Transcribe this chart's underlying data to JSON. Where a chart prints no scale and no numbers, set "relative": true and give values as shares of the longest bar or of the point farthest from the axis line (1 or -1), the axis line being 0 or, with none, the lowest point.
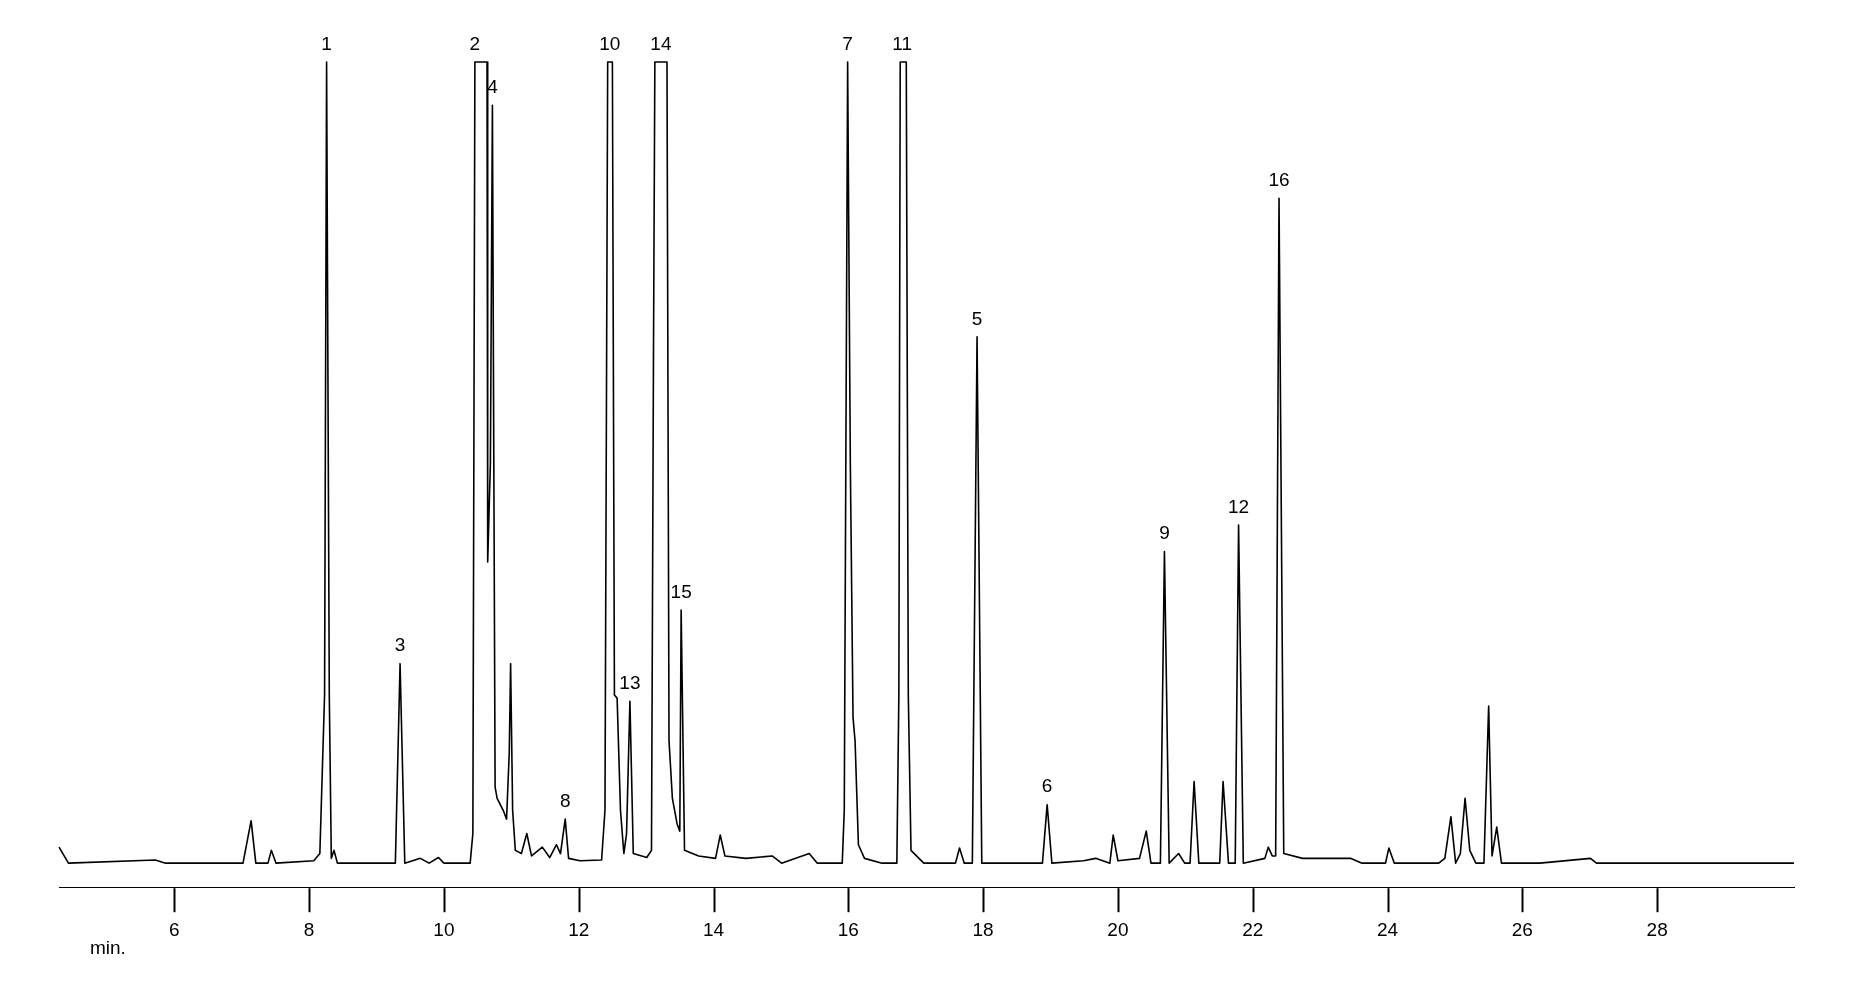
{
  "chart_data": {
    "type": "line",
    "relative": true,
    "color": "#000000",
    "tick_labels": "x",
    "xlabel": "min.",
    "xlim": [
      4.29,
      30.03
    ],
    "xticks": [
      6,
      8,
      10,
      12,
      14,
      16,
      18,
      20,
      22,
      24,
      26,
      28
    ],
    "x": [
      4.29,
      4.43,
      5.72,
      5.87,
      7.02,
      7.14,
      7.21,
      7.39,
      7.44,
      7.51,
      8.07,
      8.16,
      8.23,
      8.26,
      8.3,
      8.33,
      8.37,
      8.42,
      9.28,
      9.35,
      9.42,
      9.65,
      9.78,
      9.92,
      10.0,
      10.39,
      10.43,
      10.46,
      10.64,
      10.65,
      10.69,
      10.72,
      10.76,
      10.79,
      10.88,
      10.93,
      10.97,
      10.99,
      11.02,
      11.06,
      11.15,
      11.23,
      11.3,
      11.46,
      11.57,
      11.67,
      11.73,
      11.8,
      11.85,
      12.02,
      12.34,
      12.39,
      12.43,
      12.5,
      12.53,
      12.57,
      12.62,
      12.67,
      12.71,
      12.76,
      12.81,
      13.01,
      13.08,
      13.11,
      13.13,
      13.31,
      13.34,
      13.39,
      13.46,
      13.5,
      13.52,
      13.57,
      13.78,
      14.03,
      14.1,
      14.17,
      14.48,
      14.87,
      15.01,
      15.42,
      15.54,
      15.91,
      15.94,
      15.99,
      16.03,
      16.07,
      16.1,
      16.15,
      16.24,
      16.5,
      16.72,
      16.75,
      16.77,
      16.86,
      16.89,
      16.93,
      17.12,
      17.59,
      17.65,
      17.72,
      17.84,
      17.91,
      17.98,
      18.35,
      18.88,
      18.95,
      19.02,
      19.49,
      19.67,
      19.88,
      19.93,
      20.0,
      20.32,
      20.42,
      20.49,
      20.63,
      20.69,
      20.76,
      20.9,
      20.99,
      21.07,
      21.13,
      21.2,
      21.51,
      21.56,
      21.64,
      21.74,
      21.79,
      21.86,
      22.18,
      22.23,
      22.29,
      22.34,
      22.39,
      22.46,
      22.74,
      23.45,
      23.62,
      23.97,
      24.02,
      24.1,
      24.76,
      24.85,
      24.94,
      25.01,
      25.08,
      25.15,
      25.22,
      25.31,
      25.43,
      25.5,
      25.55,
      25.62,
      25.69,
      26.26,
      27.01,
      27.1,
      30.03
    ],
    "values": [
      0.02,
      0,
      0.004,
      0,
      0,
      0.053,
      0,
      0,
      0.016,
      0,
      0.003,
      0.012,
      0.21,
      1.0,
      0.21,
      0.006,
      0.016,
      0,
      0,
      0.249,
      0,
      0.006,
      0,
      0.007,
      0,
      0,
      0.037,
      1.0,
      1.0,
      0.376,
      0.499,
      0.946,
      0.095,
      0.081,
      0.066,
      0.055,
      0.138,
      0.249,
      0.066,
      0.016,
      0.012,
      0.037,
      0.009,
      0.02,
      0.007,
      0.023,
      0.012,
      0.055,
      0.006,
      0.003,
      0.004,
      0.066,
      1.0,
      1.0,
      0.21,
      0.206,
      0.066,
      0.012,
      0.037,
      0.202,
      0.012,
      0.007,
      0.016,
      0.643,
      1.0,
      1.0,
      0.153,
      0.081,
      0.049,
      0.04,
      0.316,
      0.016,
      0.009,
      0.006,
      0.035,
      0.009,
      0.006,
      0.009,
      0,
      0.012,
      0,
      0,
      0.066,
      1.0,
      0.499,
      0.182,
      0.153,
      0.023,
      0.006,
      0,
      0,
      0.21,
      1.0,
      1.0,
      0.21,
      0.016,
      0,
      0,
      0.019,
      0,
      0,
      0.657,
      0,
      0,
      0,
      0.073,
      0,
      0.003,
      0.006,
      0,
      0.035,
      0.003,
      0.006,
      0.04,
      0,
      0,
      0.389,
      0,
      0.012,
      0,
      0,
      0.102,
      0,
      0,
      0.102,
      0,
      0,
      0.422,
      0,
      0.006,
      0.02,
      0.009,
      0.009,
      0.83,
      0.012,
      0.006,
      0.006,
      0,
      0,
      0.019,
      0,
      0,
      0.006,
      0.058,
      0,
      0.012,
      0.081,
      0.016,
      0,
      0,
      0.196,
      0.009,
      0.045,
      0,
      0,
      0.006,
      0,
      0
    ],
    "annotations": [
      {
        "text": "1",
        "x": 8.26,
        "y": 1.0
      },
      {
        "text": "2",
        "x": 10.46,
        "y": 1.0
      },
      {
        "text": "3",
        "x": 9.35,
        "y": 0.249
      },
      {
        "text": "4",
        "x": 10.72,
        "y": 0.946
      },
      {
        "text": "5",
        "x": 17.91,
        "y": 0.657
      },
      {
        "text": "6",
        "x": 18.95,
        "y": 0.073
      },
      {
        "text": "7",
        "x": 15.99,
        "y": 1.0
      },
      {
        "text": "8",
        "x": 11.8,
        "y": 0.055
      },
      {
        "text": "9",
        "x": 20.69,
        "y": 0.389
      },
      {
        "text": "10",
        "x": 12.46,
        "y": 1.0
      },
      {
        "text": "11",
        "x": 16.8,
        "y": 1.0
      },
      {
        "text": "12",
        "x": 21.79,
        "y": 0.422
      },
      {
        "text": "13",
        "x": 12.76,
        "y": 0.202
      },
      {
        "text": "14",
        "x": 13.22,
        "y": 1.0
      },
      {
        "text": "15",
        "x": 13.52,
        "y": 0.316
      },
      {
        "text": "16",
        "x": 22.39,
        "y": 0.83
      }
    ]
  }
}
